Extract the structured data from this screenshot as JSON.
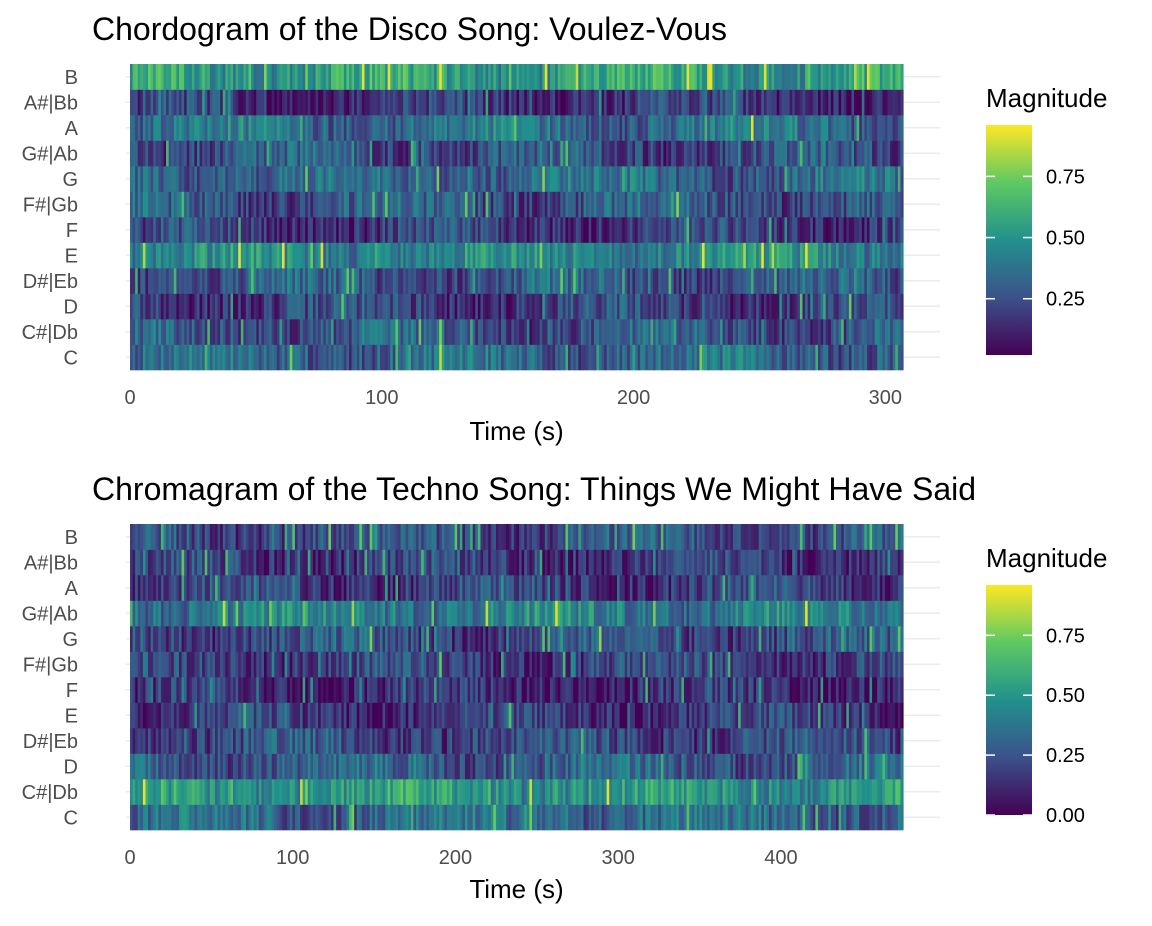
{
  "chart_data": [
    {
      "type": "heatmap",
      "title": "Chordogram of the Disco Song: Voulez-Vous",
      "xlabel": "Time (s)",
      "ylabel": "",
      "xlim": [
        0,
        307
      ],
      "x_ticks": [
        0,
        100,
        200,
        300
      ],
      "y_categories": [
        "C",
        "C#|Db",
        "D",
        "D#|Eb",
        "E",
        "F",
        "F#|Gb",
        "G",
        "G#|Ab",
        "A",
        "A#|Bb",
        "B"
      ],
      "legend": {
        "title": "Magnitude",
        "ticks": [
          "0.25",
          "0.50",
          "0.75"
        ],
        "range": [
          0.02,
          0.96
        ],
        "placement": "right"
      },
      "colormap": [
        "#440154",
        "#3b528b",
        "#21918c",
        "#5ec962",
        "#fde725"
      ],
      "mean_magnitude_by_pitch": {
        "B": 0.56,
        "A#|Bb": 0.16,
        "A": 0.36,
        "G#|Ab": 0.24,
        "G": 0.33,
        "F#|Gb": 0.27,
        "F": 0.18,
        "E": 0.46,
        "D#|Eb": 0.27,
        "D": 0.2,
        "C#|Db": 0.27,
        "C": 0.33
      }
    },
    {
      "type": "heatmap",
      "title": "Chromagram of the Techno Song: Things We Might Have Said",
      "xlabel": "Time (s)",
      "ylabel": "",
      "xlim": [
        0,
        475
      ],
      "x_ticks": [
        0,
        100,
        200,
        300,
        400
      ],
      "y_categories": [
        "C",
        "C#|Db",
        "D",
        "D#|Eb",
        "E",
        "F",
        "F#|Gb",
        "G",
        "G#|Ab",
        "A",
        "A#|Bb",
        "B"
      ],
      "legend": {
        "title": "Magnitude",
        "ticks": [
          "0.00",
          "0.25",
          "0.50",
          "0.75"
        ],
        "range": [
          0.0,
          0.96
        ],
        "placement": "right"
      },
      "colormap": [
        "#440154",
        "#3b528b",
        "#21918c",
        "#5ec962",
        "#fde725"
      ],
      "mean_magnitude_by_pitch": {
        "B": 0.25,
        "A#|Bb": 0.18,
        "A": 0.2,
        "G#|Ab": 0.42,
        "G": 0.24,
        "F#|Gb": 0.19,
        "F": 0.13,
        "E": 0.17,
        "D#|Eb": 0.23,
        "D": 0.3,
        "C#|Db": 0.52,
        "C": 0.33
      }
    }
  ]
}
